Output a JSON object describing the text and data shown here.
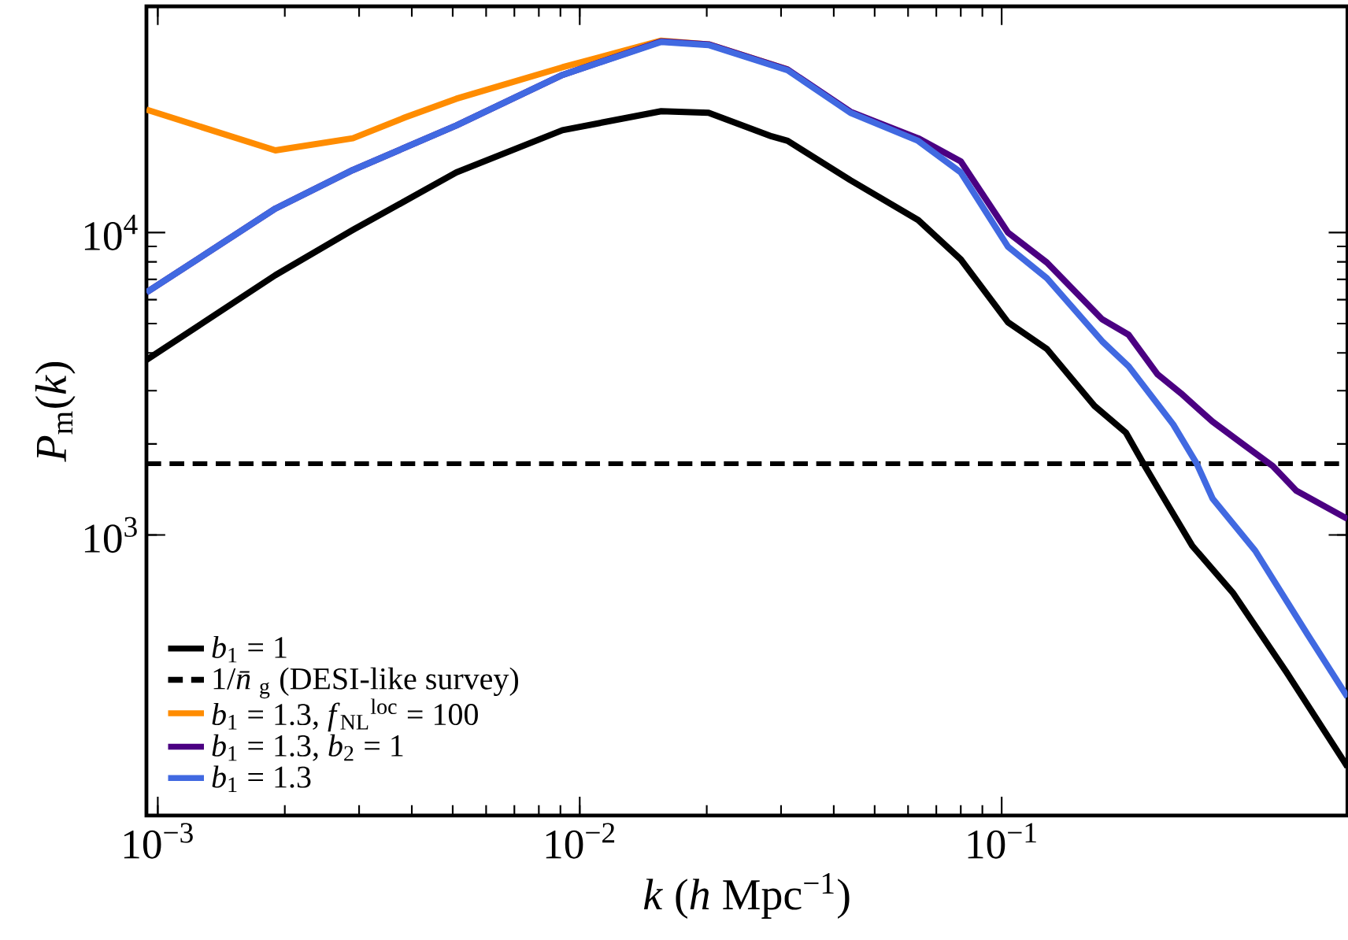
{
  "chart_data": {
    "type": "line",
    "xlabel": "*k* (*h* Mpc$^{−1}$)",
    "ylabel": "*P*$_{m}$(*k*)",
    "log": "xy",
    "legend": "bottom left",
    "marker": "none",
    "xlim": [
      0.00094,
      0.66
    ],
    "ylim": [
      118,
      56000
    ],
    "xticks": [
      {
        "value": 0.001,
        "label": "10$^{−3}$"
      },
      {
        "value": 0.01,
        "label": "10$^{−2}$"
      },
      {
        "value": 0.1,
        "label": "10$^{−1}$"
      }
    ],
    "yticks": [
      {
        "value": 1000,
        "label": "10$^{3}$"
      },
      {
        "value": 10000,
        "label": "10$^{4}$"
      }
    ],
    "series": [
      {
        "name": "*b*$_{1}$ = 1",
        "color": "#000000",
        "line_style": "solid",
        "x": [
          0.00094,
          0.0019,
          0.0029,
          0.0051,
          0.0091,
          0.0156,
          0.0202,
          0.0285,
          0.0311,
          0.0438,
          0.0634,
          0.08,
          0.1035,
          0.128,
          0.166,
          0.197,
          0.219,
          0.238,
          0.283,
          0.354,
          0.473,
          0.645,
          0.66
        ],
        "values": [
          3790,
          7230,
          10200,
          15800,
          21800,
          25200,
          24900,
          20800,
          20100,
          14900,
          11000,
          8150,
          5050,
          4120,
          2670,
          2180,
          1680,
          1380,
          920,
          641,
          352,
          180,
          171
        ]
      },
      {
        "name": "1/*n̄*$_{g}$ (DESI-like survey)",
        "color": "#000000",
        "line_style": "dashed",
        "x": [
          0.00094,
          0.66
        ],
        "values": [
          1720,
          1720
        ]
      },
      {
        "name": "*b*$_{1}$ = 1.3, *f*$_{NL}$$^{loc}$ = 100",
        "color": "#ff8c00",
        "line_style": "solid",
        "x": [
          0.00094,
          0.0019,
          0.0029,
          0.00385,
          0.0051,
          0.0091,
          0.0156,
          0.0202,
          0.0311
        ],
        "values": [
          25500,
          18700,
          20500,
          24000,
          27700,
          35200,
          43100,
          41900,
          34600
        ]
      },
      {
        "name": "*b*$_{1}$ = 1.3, *b*$_{2}$ = 1",
        "color": "#4b0082",
        "line_style": "solid",
        "x": [
          0.00094,
          0.0019,
          0.0029,
          0.0051,
          0.0091,
          0.0156,
          0.0202,
          0.0311,
          0.0438,
          0.0634,
          0.08,
          0.1035,
          0.128,
          0.173,
          0.2,
          0.234,
          0.266,
          0.316,
          0.376,
          0.439,
          0.499,
          0.66
        ],
        "values": [
          6340,
          12000,
          16100,
          22600,
          33200,
          42900,
          41900,
          34600,
          25100,
          20500,
          17200,
          10000,
          7960,
          5170,
          4590,
          3400,
          2940,
          2370,
          1980,
          1690,
          1400,
          1130
        ]
      },
      {
        "name": "*b*$_{1}$ = 1.3",
        "color": "#4169e1",
        "line_style": "solid",
        "x": [
          0.00094,
          0.0019,
          0.0029,
          0.0051,
          0.0091,
          0.0156,
          0.0202,
          0.0311,
          0.0438,
          0.0634,
          0.08,
          0.1035,
          0.128,
          0.173,
          0.2,
          0.255,
          0.29,
          0.316,
          0.399,
          0.53,
          0.66
        ],
        "values": [
          6340,
          12000,
          16100,
          22600,
          33200,
          42700,
          41700,
          34400,
          24900,
          20100,
          15800,
          8980,
          7060,
          4370,
          3610,
          2320,
          1720,
          1320,
          887,
          470,
          291
        ]
      }
    ]
  }
}
